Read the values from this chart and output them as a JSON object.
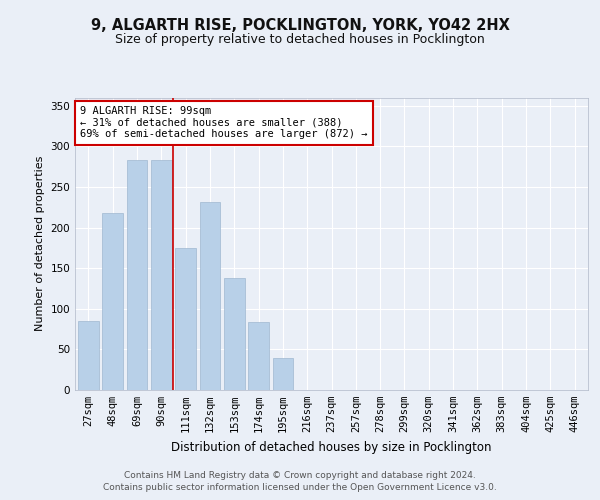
{
  "title1": "9, ALGARTH RISE, POCKLINGTON, YORK, YO42 2HX",
  "title2": "Size of property relative to detached houses in Pocklington",
  "xlabel": "Distribution of detached houses by size in Pocklington",
  "ylabel": "Number of detached properties",
  "categories": [
    "27sqm",
    "48sqm",
    "69sqm",
    "90sqm",
    "111sqm",
    "132sqm",
    "153sqm",
    "174sqm",
    "195sqm",
    "216sqm",
    "237sqm",
    "257sqm",
    "278sqm",
    "299sqm",
    "320sqm",
    "341sqm",
    "362sqm",
    "383sqm",
    "404sqm",
    "425sqm",
    "446sqm"
  ],
  "values": [
    85,
    218,
    283,
    283,
    175,
    232,
    138,
    84,
    40,
    0,
    0,
    0,
    0,
    0,
    0,
    0,
    0,
    0,
    0,
    0,
    0
  ],
  "bar_color": "#b8d0e8",
  "bar_edgecolor": "#a0b8d0",
  "ylim": [
    0,
    360
  ],
  "yticks": [
    0,
    50,
    100,
    150,
    200,
    250,
    300,
    350
  ],
  "vline_x": 3.48,
  "vline_color": "#cc0000",
  "annotation_text": "9 ALGARTH RISE: 99sqm\n← 31% of detached houses are smaller (388)\n69% of semi-detached houses are larger (872) →",
  "annotation_box_edgecolor": "#cc0000",
  "annotation_box_facecolor": "#ffffff",
  "footer": "Contains HM Land Registry data © Crown copyright and database right 2024.\nContains public sector information licensed under the Open Government Licence v3.0.",
  "bg_color": "#eaeff7",
  "plot_bg_color": "#eaeff7",
  "grid_color": "#ffffff",
  "title1_fontsize": 10.5,
  "title2_fontsize": 9,
  "ylabel_fontsize": 8,
  "xlabel_fontsize": 8.5,
  "tick_fontsize": 7.5,
  "ann_fontsize": 7.5,
  "footer_fontsize": 6.5
}
